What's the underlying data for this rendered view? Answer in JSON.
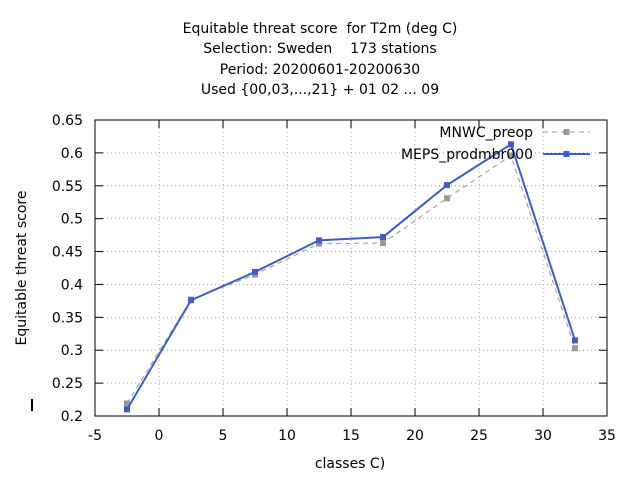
{
  "chart_data": {
    "type": "line",
    "title_lines": [
      "Equitable threat score  for T2m (deg C)",
      "Selection: Sweden    173 stations",
      "Period: 20200601-20200630",
      "Used {00,03,...,21} + 01 02 ... 09"
    ],
    "xlabel": "classes C)",
    "ylabel": "Equitable threat score",
    "xlim": [
      -5,
      35
    ],
    "ylim": [
      0.2,
      0.65
    ],
    "xticks": [
      -5,
      0,
      5,
      10,
      15,
      20,
      25,
      30,
      35
    ],
    "yticks": [
      0.2,
      0.25,
      0.3,
      0.35,
      0.4,
      0.45,
      0.5,
      0.55,
      0.6,
      0.65
    ],
    "xtick_labels": [
      "-5",
      "0",
      "5",
      "10",
      "15",
      "20",
      "25",
      "30",
      "35"
    ],
    "ytick_labels": [
      "0.2",
      "0.25",
      "0.3",
      "0.35",
      "0.4",
      "0.45",
      "0.5",
      "0.55",
      "0.6",
      "0.65"
    ],
    "grid": true,
    "legend_position": "top-right",
    "x": [
      -2.5,
      2.5,
      7.5,
      12.5,
      17.5,
      22.5,
      27.5,
      32.5
    ],
    "series": [
      {
        "name": "MNWC_preop",
        "color": "#999999",
        "dashed": true,
        "values": [
          0.219,
          0.377,
          0.415,
          0.462,
          0.463,
          0.531,
          0.596,
          0.303
        ]
      },
      {
        "name": "MEPS_prodmbr000",
        "color": "#3a5fcd",
        "dashed": false,
        "values": [
          0.21,
          0.376,
          0.419,
          0.467,
          0.472,
          0.551,
          0.613,
          0.315
        ]
      }
    ]
  }
}
